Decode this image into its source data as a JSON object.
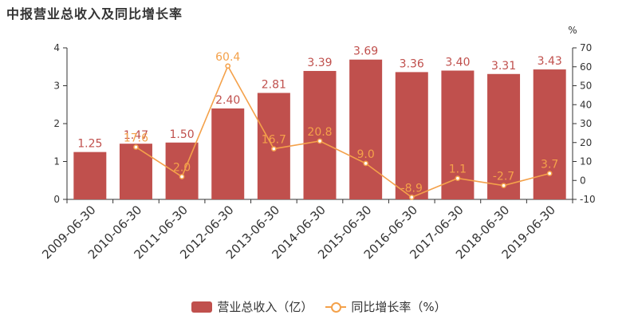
{
  "title": "中报营业总收入及同比增长率",
  "colors": {
    "bar": "#c0504d",
    "line": "#f4a14a",
    "axis": "#333333",
    "text": "#333333"
  },
  "legend": {
    "bar_label": "营业总收入（亿）",
    "line_label": "同比增长率（%）"
  },
  "chart_data": {
    "type": "bar",
    "categories": [
      "2009-06-30",
      "2010-06-30",
      "2011-06-30",
      "2012-06-30",
      "2013-06-30",
      "2014-06-30",
      "2015-06-30",
      "2016-06-30",
      "2017-06-30",
      "2018-06-30",
      "2019-06-30"
    ],
    "series": [
      {
        "name": "营业总收入（亿）",
        "type": "bar",
        "axis": "left",
        "values": [
          1.25,
          1.47,
          1.5,
          2.4,
          2.81,
          3.39,
          3.69,
          3.36,
          3.4,
          3.31,
          3.43
        ],
        "labels": [
          "1.25",
          "1.47",
          "1.50",
          "2.40",
          "2.81",
          "3.39",
          "3.69",
          "3.36",
          "3.40",
          "3.31",
          "3.43"
        ]
      },
      {
        "name": "同比增长率（%）",
        "type": "line",
        "axis": "right",
        "values": [
          null,
          17.6,
          2.0,
          60.4,
          16.7,
          20.8,
          9.0,
          -8.9,
          1.1,
          -2.7,
          3.7
        ],
        "labels": [
          "",
          "17.6",
          "2.0",
          "60.4",
          "16.7",
          "20.8",
          "9.0",
          "-8.9",
          "1.1",
          "-2.7",
          "3.7"
        ]
      }
    ],
    "y_left": {
      "min": 0,
      "max": 4,
      "ticks": [
        "0",
        "1",
        "2",
        "3",
        "4"
      ]
    },
    "y_right": {
      "min": -10,
      "max": 70,
      "unit": "%",
      "ticks": [
        "-10",
        "0",
        "10",
        "20",
        "30",
        "40",
        "50",
        "60",
        "70"
      ]
    },
    "legend_position": "bottom",
    "grid": false
  }
}
